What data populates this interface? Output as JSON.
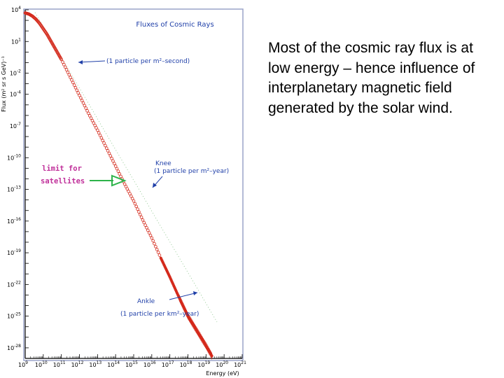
{
  "description": "Most of the cosmic ray flux is at low energy – hence influence of interplanetary magnetic field generated by the solar wind.",
  "chart_data": {
    "type": "scatter",
    "title": "Fluxes of Cosmic Rays",
    "xlabel": "Energy (eV)",
    "ylabel": "Flux (m² sr s GeV)⁻¹",
    "x_scale": "log",
    "y_scale": "log",
    "xlim_exp": [
      9,
      21
    ],
    "ylim_exp": [
      -29,
      4
    ],
    "x_tick_base": "10",
    "x_tick_exponents": [
      "9",
      "10",
      "11",
      "12",
      "13",
      "14",
      "15",
      "16",
      "17",
      "18",
      "19",
      "20",
      "21"
    ],
    "y_tick_base": "10",
    "y_tick_exponents": [
      "4",
      "1",
      "-2",
      "-4",
      "-7",
      "-10",
      "-13",
      "-16",
      "-19",
      "-22",
      "-25",
      "-28"
    ],
    "series_points_log10": [
      [
        9.0,
        3.7
      ],
      [
        9.2,
        3.6
      ],
      [
        9.4,
        3.4
      ],
      [
        9.6,
        3.1
      ],
      [
        9.8,
        2.7
      ],
      [
        10.0,
        2.2
      ],
      [
        10.2,
        1.7
      ],
      [
        10.4,
        1.1
      ],
      [
        10.6,
        0.5
      ],
      [
        10.8,
        -0.1
      ],
      [
        11.0,
        -0.7
      ],
      [
        11.5,
        -2.4
      ],
      [
        12.0,
        -4.1
      ],
      [
        12.5,
        -5.8
      ],
      [
        13.0,
        -7.4
      ],
      [
        13.5,
        -9.1
      ],
      [
        14.0,
        -10.8
      ],
      [
        14.5,
        -12.5
      ],
      [
        15.0,
        -14.1
      ],
      [
        15.5,
        -15.9
      ],
      [
        16.0,
        -17.6
      ],
      [
        16.5,
        -19.5
      ],
      [
        17.0,
        -21.3
      ],
      [
        17.5,
        -23.2
      ],
      [
        18.0,
        -25.0
      ],
      [
        18.5,
        -26.4
      ],
      [
        19.0,
        -27.8
      ],
      [
        19.5,
        -29.3
      ]
    ],
    "annotations": {
      "one_per_m2_s": "(1 particle per m²–second)",
      "knee_title": "Knee",
      "knee_sub": "(1 particle per m²–year)",
      "ankle_title": "Ankle",
      "ankle_sub": "(1 particle per km²–year)",
      "limit_line1": "limit for",
      "limit_line2": "satellites"
    },
    "colors": {
      "points": "#d42a1c",
      "annotation": "#1f3fa8",
      "limit_text": "#c0309a",
      "limit_arrow": "#2db34a",
      "frame": "#9aa3c8"
    }
  }
}
